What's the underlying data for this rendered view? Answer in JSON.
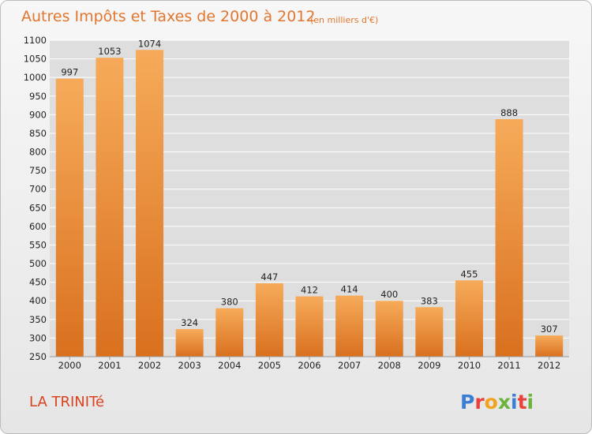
{
  "header": {
    "title": "Autres Impôts et Taxes de 2000 à 2012",
    "subtitle": "(en milliers d'€)"
  },
  "commune": "LA TRINITé",
  "logo": {
    "text": "Proxiti",
    "letter_colors": [
      "#3a7fd5",
      "#e8423b",
      "#f2a21d",
      "#6cb33e",
      "#3a7fd5",
      "#e8423b",
      "#6cb33e"
    ]
  },
  "colors": {
    "bar_top": "#f6ab5a",
    "bar_bottom": "#d9701e",
    "plot_bg": "#dedede",
    "grid": "#ffffff"
  },
  "chart_data": {
    "type": "bar",
    "title": "Autres Impôts et Taxes de 2000 à 2012",
    "subtitle": "(en milliers d'€)",
    "xlabel": "",
    "ylabel": "",
    "categories": [
      "2000",
      "2001",
      "2002",
      "2003",
      "2004",
      "2005",
      "2006",
      "2007",
      "2008",
      "2009",
      "2010",
      "2011",
      "2012"
    ],
    "values": [
      997,
      1053,
      1074,
      324,
      380,
      447,
      412,
      414,
      400,
      383,
      455,
      888,
      307
    ],
    "value_labels": [
      "997",
      "1053",
      "1074",
      "324",
      "380",
      "447",
      "412",
      "414",
      "400",
      "383",
      "455",
      "888",
      "307"
    ],
    "ylim": [
      250,
      1100
    ],
    "yticks": [
      250,
      300,
      350,
      400,
      450,
      500,
      550,
      600,
      650,
      700,
      750,
      800,
      850,
      900,
      950,
      1000,
      1050,
      1100
    ],
    "ytick_labels": [
      "250",
      "300",
      "350",
      "400",
      "450",
      "500",
      "550",
      "600",
      "650",
      "700",
      "750",
      "800",
      "850",
      "900",
      "950",
      "1000",
      "1050",
      "1100"
    ],
    "grid": true,
    "legend": "none"
  }
}
